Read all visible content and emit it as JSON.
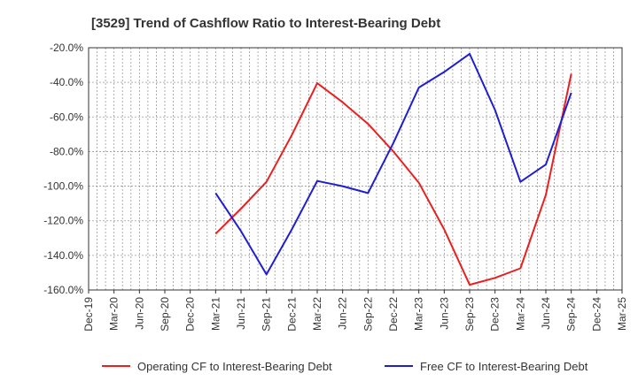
{
  "chart_data": {
    "type": "line",
    "title": "[3529]  Trend of Cashflow Ratio to Interest-Bearing Debt",
    "xlabel": "",
    "ylabel": "",
    "ylim": [
      -160,
      -20
    ],
    "y_tick_values": [
      -20,
      -40,
      -60,
      -80,
      -100,
      -120,
      -140,
      -160
    ],
    "y_tick_labels": [
      "-20.0%",
      "-40.0%",
      "-60.0%",
      "-80.0%",
      "-100.0%",
      "-120.0%",
      "-140.0%",
      "-160.0%"
    ],
    "categories": [
      "Dec-19",
      "Mar-20",
      "Jun-20",
      "Sep-20",
      "Dec-20",
      "Mar-21",
      "Jun-21",
      "Sep-21",
      "Dec-21",
      "Mar-22",
      "Jun-22",
      "Sep-22",
      "Dec-22",
      "Mar-23",
      "Jun-23",
      "Sep-23",
      "Dec-23",
      "Mar-24",
      "Jun-24",
      "Sep-24",
      "Dec-24",
      "Mar-25"
    ],
    "grid": true,
    "legend_position": "bottom",
    "series": [
      {
        "name": "Operating CF to Interest-Bearing Debt",
        "color": "#e8201f",
        "values": [
          null,
          null,
          null,
          null,
          null,
          -127.5,
          -113,
          -97.5,
          -70.5,
          -40.5,
          -51.5,
          -64,
          -80,
          -98,
          -125,
          -157,
          -153,
          -147.5,
          -105,
          -35,
          null,
          null
        ]
      },
      {
        "name": "Free CF to Interest-Bearing Debt",
        "color": "#1f1fd0",
        "values": [
          null,
          null,
          null,
          null,
          null,
          -104,
          -126,
          -151,
          -125,
          -97,
          -100,
          -104,
          -75,
          -43,
          -34,
          -23.5,
          -56,
          -97.5,
          -87.5,
          -46,
          null,
          null
        ]
      }
    ]
  }
}
